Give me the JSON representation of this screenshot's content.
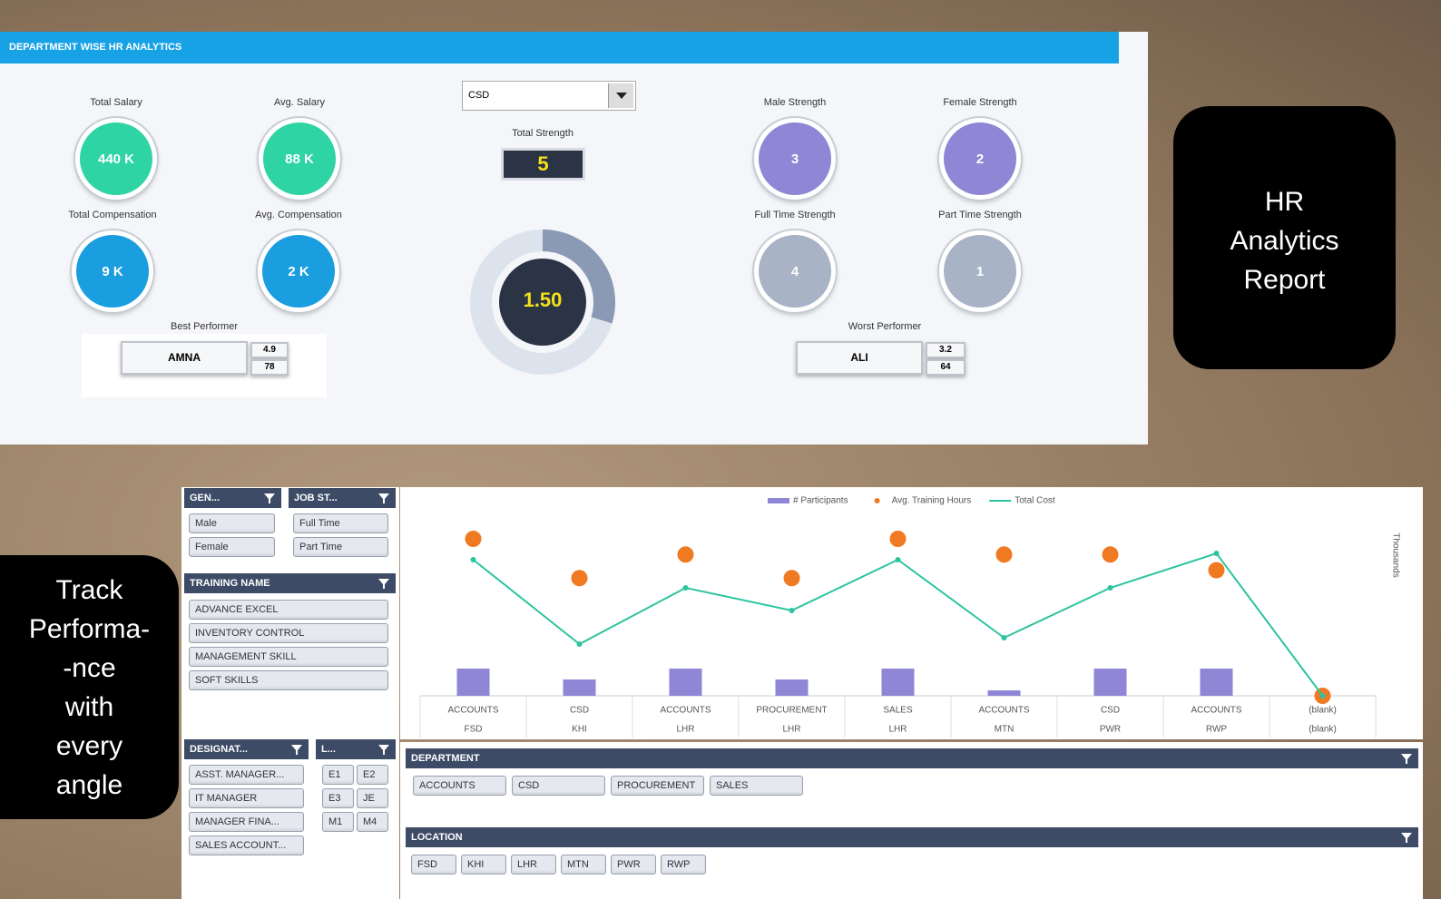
{
  "header": {
    "title": "DEPARTMENT WISE HR ANALYTICS"
  },
  "dropdown": {
    "value": "CSD"
  },
  "kpis": [
    {
      "label": "Total Salary",
      "value": "440 K"
    },
    {
      "label": "Avg. Salary",
      "value": "88 K"
    },
    {
      "label": "Total Compensation",
      "value": "9 K"
    },
    {
      "label": "Avg. Compensation",
      "value": "2 K"
    },
    {
      "label": "Male Strength",
      "value": 3
    },
    {
      "label": "Female Strength",
      "value": 2
    },
    {
      "label": "Full Time Strength",
      "value": 4
    },
    {
      "label": "Part Time Strength",
      "value": 1
    }
  ],
  "total_strength": {
    "label": "Total Strength",
    "value": 5
  },
  "donut": {
    "center": "1.50"
  },
  "best_performer": {
    "label": "Best Performer",
    "name": "AMNA",
    "scores": [
      "4.9",
      "78"
    ]
  },
  "worst_performer": {
    "label": "Worst Performer",
    "name": "ALI",
    "scores": [
      "3.2",
      "64"
    ]
  },
  "banner_right": {
    "lines": [
      "HR",
      "Analytics",
      "Report"
    ]
  },
  "banner_left": {
    "lines": [
      "Track",
      "Performa-",
      "-nce",
      "with",
      "every",
      "angle"
    ]
  },
  "slicers": {
    "gender": {
      "title": "GEN...",
      "items": [
        "Male",
        "Female"
      ]
    },
    "job_status": {
      "title": "JOB ST...",
      "items": [
        "Full Time",
        "Part Time"
      ]
    },
    "training": {
      "title": "TRAINING NAME",
      "items": [
        "ADVANCE EXCEL",
        "INVENTORY CONTROL",
        "MANAGEMENT SKILL",
        "SOFT SKILLS"
      ]
    },
    "designation": {
      "title": "DESIGNAT...",
      "items": [
        "ASST. MANAGER...",
        "IT MANAGER",
        "MANAGER FINA...",
        "SALES ACCOUNT..."
      ]
    },
    "level": {
      "title": "L...",
      "items": [
        "E1",
        "E2",
        "E3",
        "JE",
        "M1",
        "M4"
      ]
    },
    "department": {
      "title": "DEPARTMENT",
      "items": [
        "ACCOUNTS",
        "CSD",
        "PROCUREMENT",
        "SALES"
      ]
    },
    "location": {
      "title": "LOCATION",
      "items": [
        "FSD",
        "KHI",
        "LHR",
        "MTN",
        "PWR",
        "RWP"
      ]
    }
  },
  "chart_data": {
    "type": "combo",
    "y2_label": "Thousands",
    "categories": [
      [
        "ACCOUNTS",
        "FSD"
      ],
      [
        "CSD",
        "KHI"
      ],
      [
        "ACCOUNTS",
        "LHR"
      ],
      [
        "PROCUREMENT",
        "LHR"
      ],
      [
        "SALES",
        "LHR"
      ],
      [
        "ACCOUNTS",
        "MTN"
      ],
      [
        "CSD",
        "PWR"
      ],
      [
        "ACCOUNTS",
        "RWP"
      ],
      [
        "(blank)",
        "(blank)"
      ]
    ],
    "series": [
      {
        "name": "# Participants",
        "type": "bar",
        "color": "#8f86d6",
        "values": [
          5,
          3,
          5,
          3,
          5,
          1,
          5,
          5,
          null
        ]
      },
      {
        "name": "Avg. Training Hours",
        "type": "scatter",
        "color": "#f07a22",
        "values": [
          8,
          6,
          7.2,
          6,
          8,
          7.2,
          7.2,
          6.4,
          0
        ]
      },
      {
        "name": "Total Cost",
        "type": "line",
        "color": "#2cc4a0",
        "values": [
          30,
          11.4,
          23.8,
          18.8,
          30,
          12.8,
          23.8,
          31.4,
          0
        ]
      }
    ]
  }
}
